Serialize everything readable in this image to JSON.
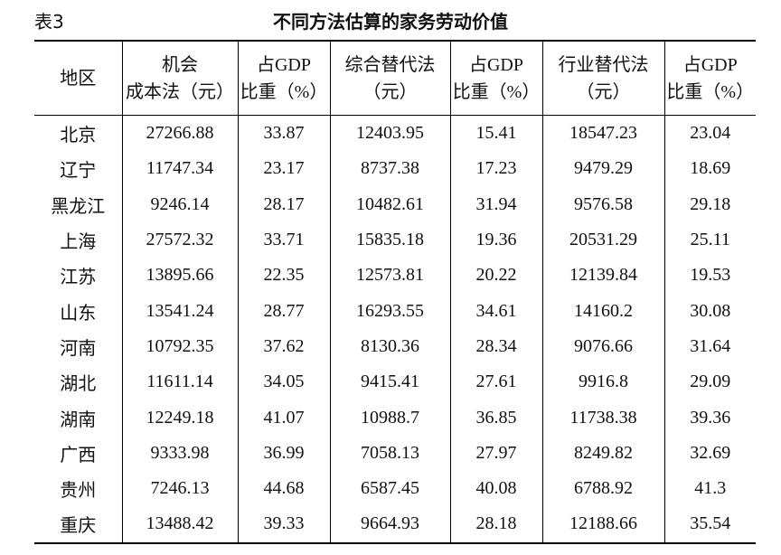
{
  "title_label": "表3",
  "title": "不同方法估算的家务劳动价值",
  "table": {
    "header": [
      [
        "地区"
      ],
      [
        "机会",
        "成本法（元）"
      ],
      [
        "占GDP",
        "比重（%）"
      ],
      [
        "综合替代法",
        "（元）"
      ],
      [
        "占GDP",
        "比重（%）"
      ],
      [
        "行业替代法",
        "（元）"
      ],
      [
        "占GDP",
        "比重（%）"
      ]
    ],
    "rows": [
      [
        "北京",
        "27266.88",
        "33.87",
        "12403.95",
        "15.41",
        "18547.23",
        "23.04"
      ],
      [
        "辽宁",
        "11747.34",
        "23.17",
        "8737.38",
        "17.23",
        "9479.29",
        "18.69"
      ],
      [
        "黑龙江",
        "9246.14",
        "28.17",
        "10482.61",
        "31.94",
        "9576.58",
        "29.18"
      ],
      [
        "上海",
        "27572.32",
        "33.71",
        "15835.18",
        "19.36",
        "20531.29",
        "25.11"
      ],
      [
        "江苏",
        "13895.66",
        "22.35",
        "12573.81",
        "20.22",
        "12139.84",
        "19.53"
      ],
      [
        "山东",
        "13541.24",
        "28.77",
        "16293.55",
        "34.61",
        "14160.2",
        "30.08"
      ],
      [
        "河南",
        "10792.35",
        "37.62",
        "8130.36",
        "28.34",
        "9076.66",
        "31.64"
      ],
      [
        "湖北",
        "11611.14",
        "34.05",
        "9415.41",
        "27.61",
        "9916.8",
        "29.09"
      ],
      [
        "湖南",
        "12249.18",
        "41.07",
        "10988.7",
        "36.85",
        "11738.38",
        "39.36"
      ],
      [
        "广西",
        "9333.98",
        "36.99",
        "7058.13",
        "27.97",
        "8249.82",
        "32.69"
      ],
      [
        "贵州",
        "7246.13",
        "44.68",
        "6587.45",
        "40.08",
        "6788.92",
        "41.3"
      ],
      [
        "重庆",
        "13488.42",
        "39.33",
        "9664.93",
        "28.18",
        "12188.66",
        "35.54"
      ]
    ]
  }
}
